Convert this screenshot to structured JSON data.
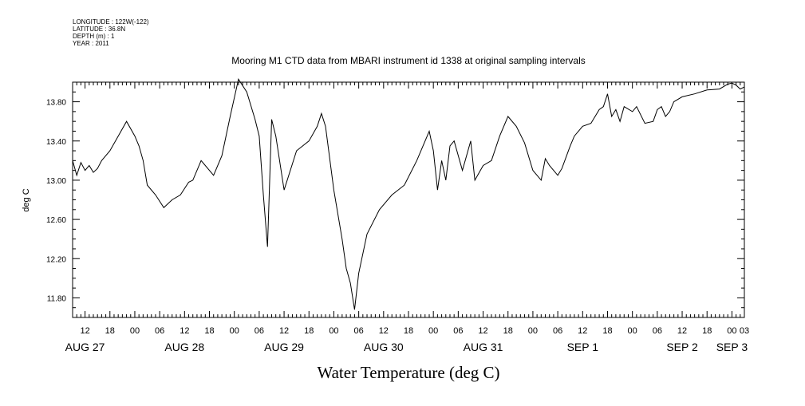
{
  "header": {
    "longitude": "LONGITUDE : 122W(-122)",
    "latitude": "LATITUDE : 36.8N",
    "depth": "DEPTH (m) : 1",
    "year": "YEAR : 2011"
  },
  "chart_data": {
    "type": "line",
    "title": "Mooring M1 CTD data from MBARI instrument id 1338 at original sampling intervals",
    "xlabel": "",
    "ylabel": "deg C",
    "bottom_label": "Water Temperature (deg C)",
    "x_unit": "hours",
    "xlim": [
      "AUG 27 09:00",
      "SEP 3 03:00"
    ],
    "ylim": [
      11.6,
      14.0
    ],
    "yticks": [
      11.8,
      12.2,
      12.6,
      13.0,
      13.4,
      13.8
    ],
    "ytick_labels": [
      "11.80",
      "12.20",
      "12.60",
      "13.00",
      "13.40",
      "13.80"
    ],
    "xticks_hour": [
      {
        "t": "AUG 27 12:00",
        "label": "12"
      },
      {
        "t": "AUG 27 18:00",
        "label": "18"
      },
      {
        "t": "AUG 28 00:00",
        "label": "00"
      },
      {
        "t": "AUG 28 06:00",
        "label": "06"
      },
      {
        "t": "AUG 28 12:00",
        "label": "12"
      },
      {
        "t": "AUG 28 18:00",
        "label": "18"
      },
      {
        "t": "AUG 29 00:00",
        "label": "00"
      },
      {
        "t": "AUG 29 06:00",
        "label": "06"
      },
      {
        "t": "AUG 29 12:00",
        "label": "12"
      },
      {
        "t": "AUG 29 18:00",
        "label": "18"
      },
      {
        "t": "AUG 30 00:00",
        "label": "00"
      },
      {
        "t": "AUG 30 06:00",
        "label": "06"
      },
      {
        "t": "AUG 30 12:00",
        "label": "12"
      },
      {
        "t": "AUG 30 18:00",
        "label": "18"
      },
      {
        "t": "AUG 31 00:00",
        "label": "00"
      },
      {
        "t": "AUG 31 06:00",
        "label": "06"
      },
      {
        "t": "AUG 31 12:00",
        "label": "12"
      },
      {
        "t": "AUG 31 18:00",
        "label": "18"
      },
      {
        "t": "SEP 1 00:00",
        "label": "00"
      },
      {
        "t": "SEP 1 06:00",
        "label": "06"
      },
      {
        "t": "SEP 1 12:00",
        "label": "12"
      },
      {
        "t": "SEP 1 18:00",
        "label": "18"
      },
      {
        "t": "SEP 2 00:00",
        "label": "00"
      },
      {
        "t": "SEP 2 06:00",
        "label": "06"
      },
      {
        "t": "SEP 2 12:00",
        "label": "12"
      },
      {
        "t": "SEP 2 18:00",
        "label": "18"
      },
      {
        "t": "SEP 3 00:00",
        "label": "00"
      },
      {
        "t": "SEP 3 03:00",
        "label": "03"
      }
    ],
    "xticks_day": [
      {
        "t": "AUG 27 12:00",
        "label": "AUG 27"
      },
      {
        "t": "AUG 28 12:00",
        "label": "AUG 28"
      },
      {
        "t": "AUG 29 12:00",
        "label": "AUG 29"
      },
      {
        "t": "AUG 30 12:00",
        "label": "AUG 30"
      },
      {
        "t": "AUG 31 12:00",
        "label": "AUG 31"
      },
      {
        "t": "SEP 1 12:00",
        "label": "SEP  1"
      },
      {
        "t": "SEP 2 12:00",
        "label": "SEP  2"
      },
      {
        "t": "SEP 3 00:00",
        "label": "SEP  3"
      }
    ],
    "grid": false,
    "legend": "none",
    "series": [
      {
        "x": [
          "AUG 27 09:00",
          "AUG 27 10:00",
          "AUG 27 11:00",
          "AUG 27 12:00",
          "AUG 27 13:00",
          "AUG 27 14:00",
          "AUG 27 15:00",
          "AUG 27 16:00",
          "AUG 27 18:00",
          "AUG 27 20:00",
          "AUG 27 22:00",
          "AUG 28 00:00",
          "AUG 28 01:00",
          "AUG 28 02:00",
          "AUG 28 03:00",
          "AUG 28 05:00",
          "AUG 28 07:00",
          "AUG 28 09:00",
          "AUG 28 11:00",
          "AUG 28 13:00",
          "AUG 28 14:00",
          "AUG 28 16:00",
          "AUG 28 19:00",
          "AUG 28 21:00",
          "AUG 28 23:00",
          "AUG 29 01:00",
          "AUG 29 03:00",
          "AUG 29 05:00",
          "AUG 29 06:00",
          "AUG 29 07:00",
          "AUG 29 08:00",
          "AUG 29 09:00",
          "AUG 29 10:00",
          "AUG 29 12:00",
          "AUG 29 15:00",
          "AUG 29 18:00",
          "AUG 29 20:00",
          "AUG 29 21:00",
          "AUG 29 22:00",
          "AUG 30 00:00",
          "AUG 30 02:00",
          "AUG 30 03:00",
          "AUG 30 04:00",
          "AUG 30 05:00",
          "AUG 30 06:00",
          "AUG 30 08:00",
          "AUG 30 11:00",
          "AUG 30 14:00",
          "AUG 30 17:00",
          "AUG 30 20:00",
          "AUG 30 23:00",
          "AUG 31 00:00",
          "AUG 31 01:00",
          "AUG 31 02:00",
          "AUG 31 03:00",
          "AUG 31 04:00",
          "AUG 31 05:00",
          "AUG 31 07:00",
          "AUG 31 09:00",
          "AUG 31 10:00",
          "AUG 31 12:00",
          "AUG 31 14:00",
          "AUG 31 16:00",
          "AUG 31 18:00",
          "AUG 31 20:00",
          "AUG 31 22:00",
          "SEP 1 00:00",
          "SEP 1 02:00",
          "SEP 1 03:00",
          "SEP 1 04:00",
          "SEP 1 06:00",
          "SEP 1 07:00",
          "SEP 1 09:00",
          "SEP 1 10:00",
          "SEP 1 12:00",
          "SEP 1 14:00",
          "SEP 1 16:00",
          "SEP 1 17:00",
          "SEP 1 18:00",
          "SEP 1 19:00",
          "SEP 1 20:00",
          "SEP 1 21:00",
          "SEP 1 22:00",
          "SEP 2 00:00",
          "SEP 2 01:00",
          "SEP 2 03:00",
          "SEP 2 05:00",
          "SEP 2 06:00",
          "SEP 2 07:00",
          "SEP 2 08:00",
          "SEP 2 09:00",
          "SEP 2 10:00",
          "SEP 2 12:00",
          "SEP 2 15:00",
          "SEP 2 18:00",
          "SEP 2 21:00",
          "SEP 2 23:00",
          "SEP 3 00:00",
          "SEP 3 01:00",
          "SEP 3 02:00",
          "SEP 3 03:00"
        ],
        "y": [
          13.2,
          13.05,
          13.18,
          13.1,
          13.15,
          13.08,
          13.12,
          13.2,
          13.3,
          13.45,
          13.6,
          13.45,
          13.35,
          13.2,
          12.95,
          12.85,
          12.72,
          12.8,
          12.85,
          12.98,
          13.0,
          13.2,
          13.05,
          13.25,
          13.65,
          14.03,
          13.9,
          13.62,
          13.45,
          12.85,
          12.32,
          13.62,
          13.45,
          12.9,
          13.3,
          13.4,
          13.55,
          13.68,
          13.55,
          12.9,
          12.4,
          12.1,
          11.95,
          11.68,
          12.05,
          12.45,
          12.7,
          12.85,
          12.95,
          13.2,
          13.5,
          13.3,
          12.9,
          13.2,
          13.0,
          13.35,
          13.4,
          13.1,
          13.4,
          13.0,
          13.15,
          13.2,
          13.45,
          13.65,
          13.55,
          13.38,
          13.1,
          13.0,
          13.22,
          13.15,
          13.05,
          13.12,
          13.35,
          13.45,
          13.55,
          13.58,
          13.72,
          13.75,
          13.88,
          13.65,
          13.72,
          13.6,
          13.75,
          13.7,
          13.75,
          13.58,
          13.6,
          13.72,
          13.75,
          13.65,
          13.7,
          13.8,
          13.85,
          13.88,
          13.92,
          13.93,
          13.98,
          13.99,
          13.97,
          13.93,
          13.95
        ]
      }
    ]
  }
}
